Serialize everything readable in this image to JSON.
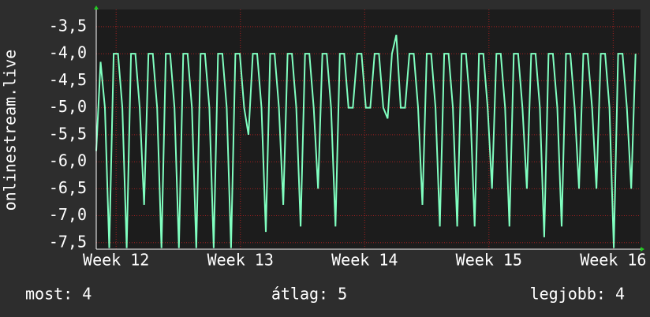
{
  "chart_data": {
    "type": "line",
    "y_label": "onlinestream.live",
    "x": [
      11.84,
      11.875,
      11.91,
      11.945,
      11.98,
      12.015,
      12.05,
      12.085,
      12.12,
      12.155,
      12.19,
      12.225,
      12.26,
      12.295,
      12.33,
      12.365,
      12.4,
      12.435,
      12.47,
      12.505,
      12.54,
      12.575,
      12.61,
      12.645,
      12.68,
      12.715,
      12.75,
      12.785,
      12.82,
      12.855,
      12.89,
      12.925,
      12.96,
      12.995,
      13.03,
      13.065,
      13.1,
      13.135,
      13.17,
      13.205,
      13.24,
      13.275,
      13.31,
      13.345,
      13.38,
      13.415,
      13.45,
      13.485,
      13.52,
      13.555,
      13.59,
      13.625,
      13.66,
      13.695,
      13.73,
      13.765,
      13.8,
      13.835,
      13.87,
      13.905,
      13.94,
      13.975,
      14.01,
      14.045,
      14.08,
      14.115,
      14.15,
      14.185,
      14.22,
      14.255,
      14.29,
      14.325,
      14.36,
      14.395,
      14.43,
      14.465,
      14.5,
      14.535,
      14.57,
      14.605,
      14.64,
      14.675,
      14.71,
      14.745,
      14.78,
      14.815,
      14.85,
      14.885,
      14.92,
      14.955,
      14.99,
      15.025,
      15.06,
      15.095,
      15.13,
      15.165,
      15.2,
      15.235,
      15.27,
      15.305,
      15.34,
      15.375,
      15.41,
      15.445,
      15.48,
      15.515,
      15.55,
      15.585,
      15.62,
      15.655,
      15.69,
      15.725,
      15.76,
      15.795,
      15.83,
      15.865,
      15.9,
      15.935,
      15.97,
      16.005,
      16.04,
      16.075,
      16.11,
      16.145,
      16.18
    ],
    "series": [
      {
        "color": "#80ffc0",
        "values": [
          -5.8,
          -4.15,
          -5,
          -7.6,
          -4,
          -4,
          -5,
          -7.6,
          -4,
          -4,
          -5,
          -6.8,
          -4,
          -4,
          -5,
          -7.6,
          -4,
          -4,
          -5,
          -7.6,
          -4,
          -4,
          -5,
          -7.6,
          -4,
          -4,
          -5,
          -7.6,
          -4,
          -4,
          -5,
          -7.6,
          -4,
          -4,
          -5,
          -5.5,
          -4,
          -4,
          -5,
          -7.3,
          -4,
          -4,
          -5,
          -6.8,
          -4,
          -4,
          -5,
          -7.2,
          -4,
          -4,
          -5,
          -6.5,
          -4,
          -4,
          -5,
          -7.2,
          -4,
          -4,
          -5,
          -5,
          -4,
          -4,
          -5,
          -5,
          -4,
          -4,
          -5,
          -5.2,
          -4,
          -3.65,
          -5,
          -5,
          -4,
          -4,
          -5,
          -6.8,
          -4,
          -4,
          -5,
          -7.2,
          -4,
          -4,
          -5,
          -7.2,
          -4,
          -4,
          -5,
          -7.2,
          -4,
          -4,
          -5,
          -6.5,
          -4,
          -4,
          -5,
          -7.2,
          -4,
          -4,
          -5,
          -6.5,
          -4,
          -4,
          -5,
          -7.4,
          -4,
          -4,
          -5,
          -7.2,
          -4,
          -4,
          -5,
          -6.5,
          -4,
          -4,
          -5,
          -6.5,
          -4,
          -4,
          -5,
          -7.6,
          -4,
          -4,
          -5,
          -6.5,
          -4
        ]
      }
    ],
    "xlim": [
      11.84,
      16.22
    ],
    "xticks": [
      {
        "value": 12,
        "label": "Week 12"
      },
      {
        "value": 13,
        "label": "Week 13"
      },
      {
        "value": 14,
        "label": "Week 14"
      },
      {
        "value": 15,
        "label": "Week 15"
      },
      {
        "value": 16,
        "label": "Week 16"
      }
    ],
    "ylim": [
      -7.62,
      -3.18
    ],
    "yticks": [
      {
        "value": -3.5,
        "label": "-3,5"
      },
      {
        "value": -4,
        "label": "-4,0"
      },
      {
        "value": -4.5,
        "label": "-4,5"
      },
      {
        "value": -5,
        "label": "-5,0"
      },
      {
        "value": -5.5,
        "label": "-5,5"
      },
      {
        "value": -6,
        "label": "-6,0"
      },
      {
        "value": -6.5,
        "label": "-6,5"
      },
      {
        "value": -7,
        "label": "-7,0"
      },
      {
        "value": -7.5,
        "label": "-7,5"
      }
    ],
    "grid": true,
    "footer": [
      "most: 4",
      "átlag: 5",
      "legjobb: 4"
    ]
  }
}
